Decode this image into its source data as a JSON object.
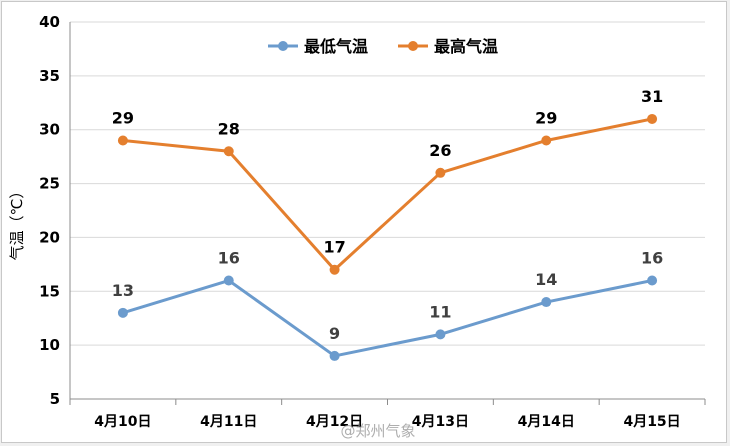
{
  "chart_data": {
    "type": "line",
    "title": "",
    "xlabel": "",
    "ylabel": "气温（℃）",
    "categories": [
      "4月10日",
      "4月11日",
      "4月12日",
      "4月13日",
      "4月14日",
      "4月15日"
    ],
    "ylim": [
      5,
      40
    ],
    "yticks": [
      5,
      10,
      15,
      20,
      25,
      30,
      35,
      40
    ],
    "grid": true,
    "legend_position": "top-center",
    "series": [
      {
        "name": "最低气温",
        "values": [
          13,
          16,
          9,
          11,
          14,
          16
        ],
        "color": "#6b9bcd",
        "label_color": "#404040"
      },
      {
        "name": "最高气温",
        "values": [
          29,
          28,
          17,
          26,
          29,
          31
        ],
        "color": "#e47f2e",
        "label_color": "#000000"
      }
    ]
  },
  "watermark": "@郑州气象"
}
